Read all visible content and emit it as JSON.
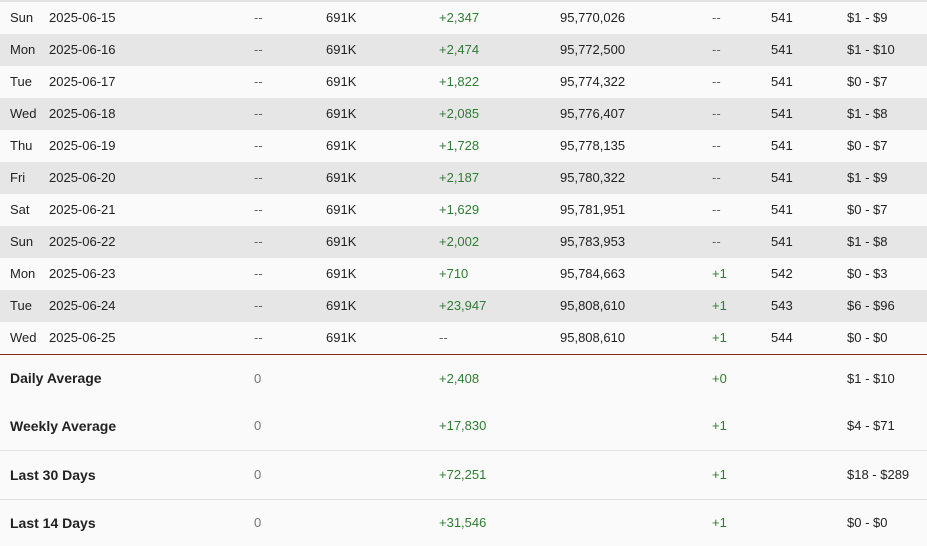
{
  "rows": [
    {
      "day": "Sun",
      "date": "2025-06-15",
      "a": "--",
      "b": "691K",
      "c": "+2,347",
      "d": "95,770,026",
      "e": "--",
      "f": "541",
      "g": "$1 - $9"
    },
    {
      "day": "Mon",
      "date": "2025-06-16",
      "a": "--",
      "b": "691K",
      "c": "+2,474",
      "d": "95,772,500",
      "e": "--",
      "f": "541",
      "g": "$1 - $10"
    },
    {
      "day": "Tue",
      "date": "2025-06-17",
      "a": "--",
      "b": "691K",
      "c": "+1,822",
      "d": "95,774,322",
      "e": "--",
      "f": "541",
      "g": "$0 - $7"
    },
    {
      "day": "Wed",
      "date": "2025-06-18",
      "a": "--",
      "b": "691K",
      "c": "+2,085",
      "d": "95,776,407",
      "e": "--",
      "f": "541",
      "g": "$1 - $8"
    },
    {
      "day": "Thu",
      "date": "2025-06-19",
      "a": "--",
      "b": "691K",
      "c": "+1,728",
      "d": "95,778,135",
      "e": "--",
      "f": "541",
      "g": "$0 - $7"
    },
    {
      "day": "Fri",
      "date": "2025-06-20",
      "a": "--",
      "b": "691K",
      "c": "+2,187",
      "d": "95,780,322",
      "e": "--",
      "f": "541",
      "g": "$1 - $9"
    },
    {
      "day": "Sat",
      "date": "2025-06-21",
      "a": "--",
      "b": "691K",
      "c": "+1,629",
      "d": "95,781,951",
      "e": "--",
      "f": "541",
      "g": "$0 - $7"
    },
    {
      "day": "Sun",
      "date": "2025-06-22",
      "a": "--",
      "b": "691K",
      "c": "+2,002",
      "d": "95,783,953",
      "e": "--",
      "f": "541",
      "g": "$1 - $8"
    },
    {
      "day": "Mon",
      "date": "2025-06-23",
      "a": "--",
      "b": "691K",
      "c": "+710",
      "d": "95,784,663",
      "e": "+1",
      "f": "542",
      "g": "$0 - $3"
    },
    {
      "day": "Tue",
      "date": "2025-06-24",
      "a": "--",
      "b": "691K",
      "c": "+23,947",
      "d": "95,808,610",
      "e": "+1",
      "f": "543",
      "g": "$6 - $96"
    },
    {
      "day": "Wed",
      "date": "2025-06-25",
      "a": "--",
      "b": "691K",
      "c": "--",
      "d": "95,808,610",
      "e": "+1",
      "f": "544",
      "g": "$0 - $0"
    }
  ],
  "summary": [
    {
      "label": "Daily Average",
      "a": "0",
      "c": "+2,408",
      "e": "+0",
      "g": "$1 - $10"
    },
    {
      "label": "Weekly Average",
      "a": "0",
      "c": "+17,830",
      "e": "+1",
      "g": "$4 - $71"
    },
    {
      "label": "Last 30 Days",
      "a": "0",
      "c": "+72,251",
      "e": "+1",
      "g": "$18 - $289"
    },
    {
      "label": "Last 14 Days",
      "a": "0",
      "c": "+31,546",
      "e": "+1",
      "g": "$0 - $0"
    }
  ],
  "colors": {
    "positive": "#2e7d32",
    "divider": "#8b2a2a"
  }
}
